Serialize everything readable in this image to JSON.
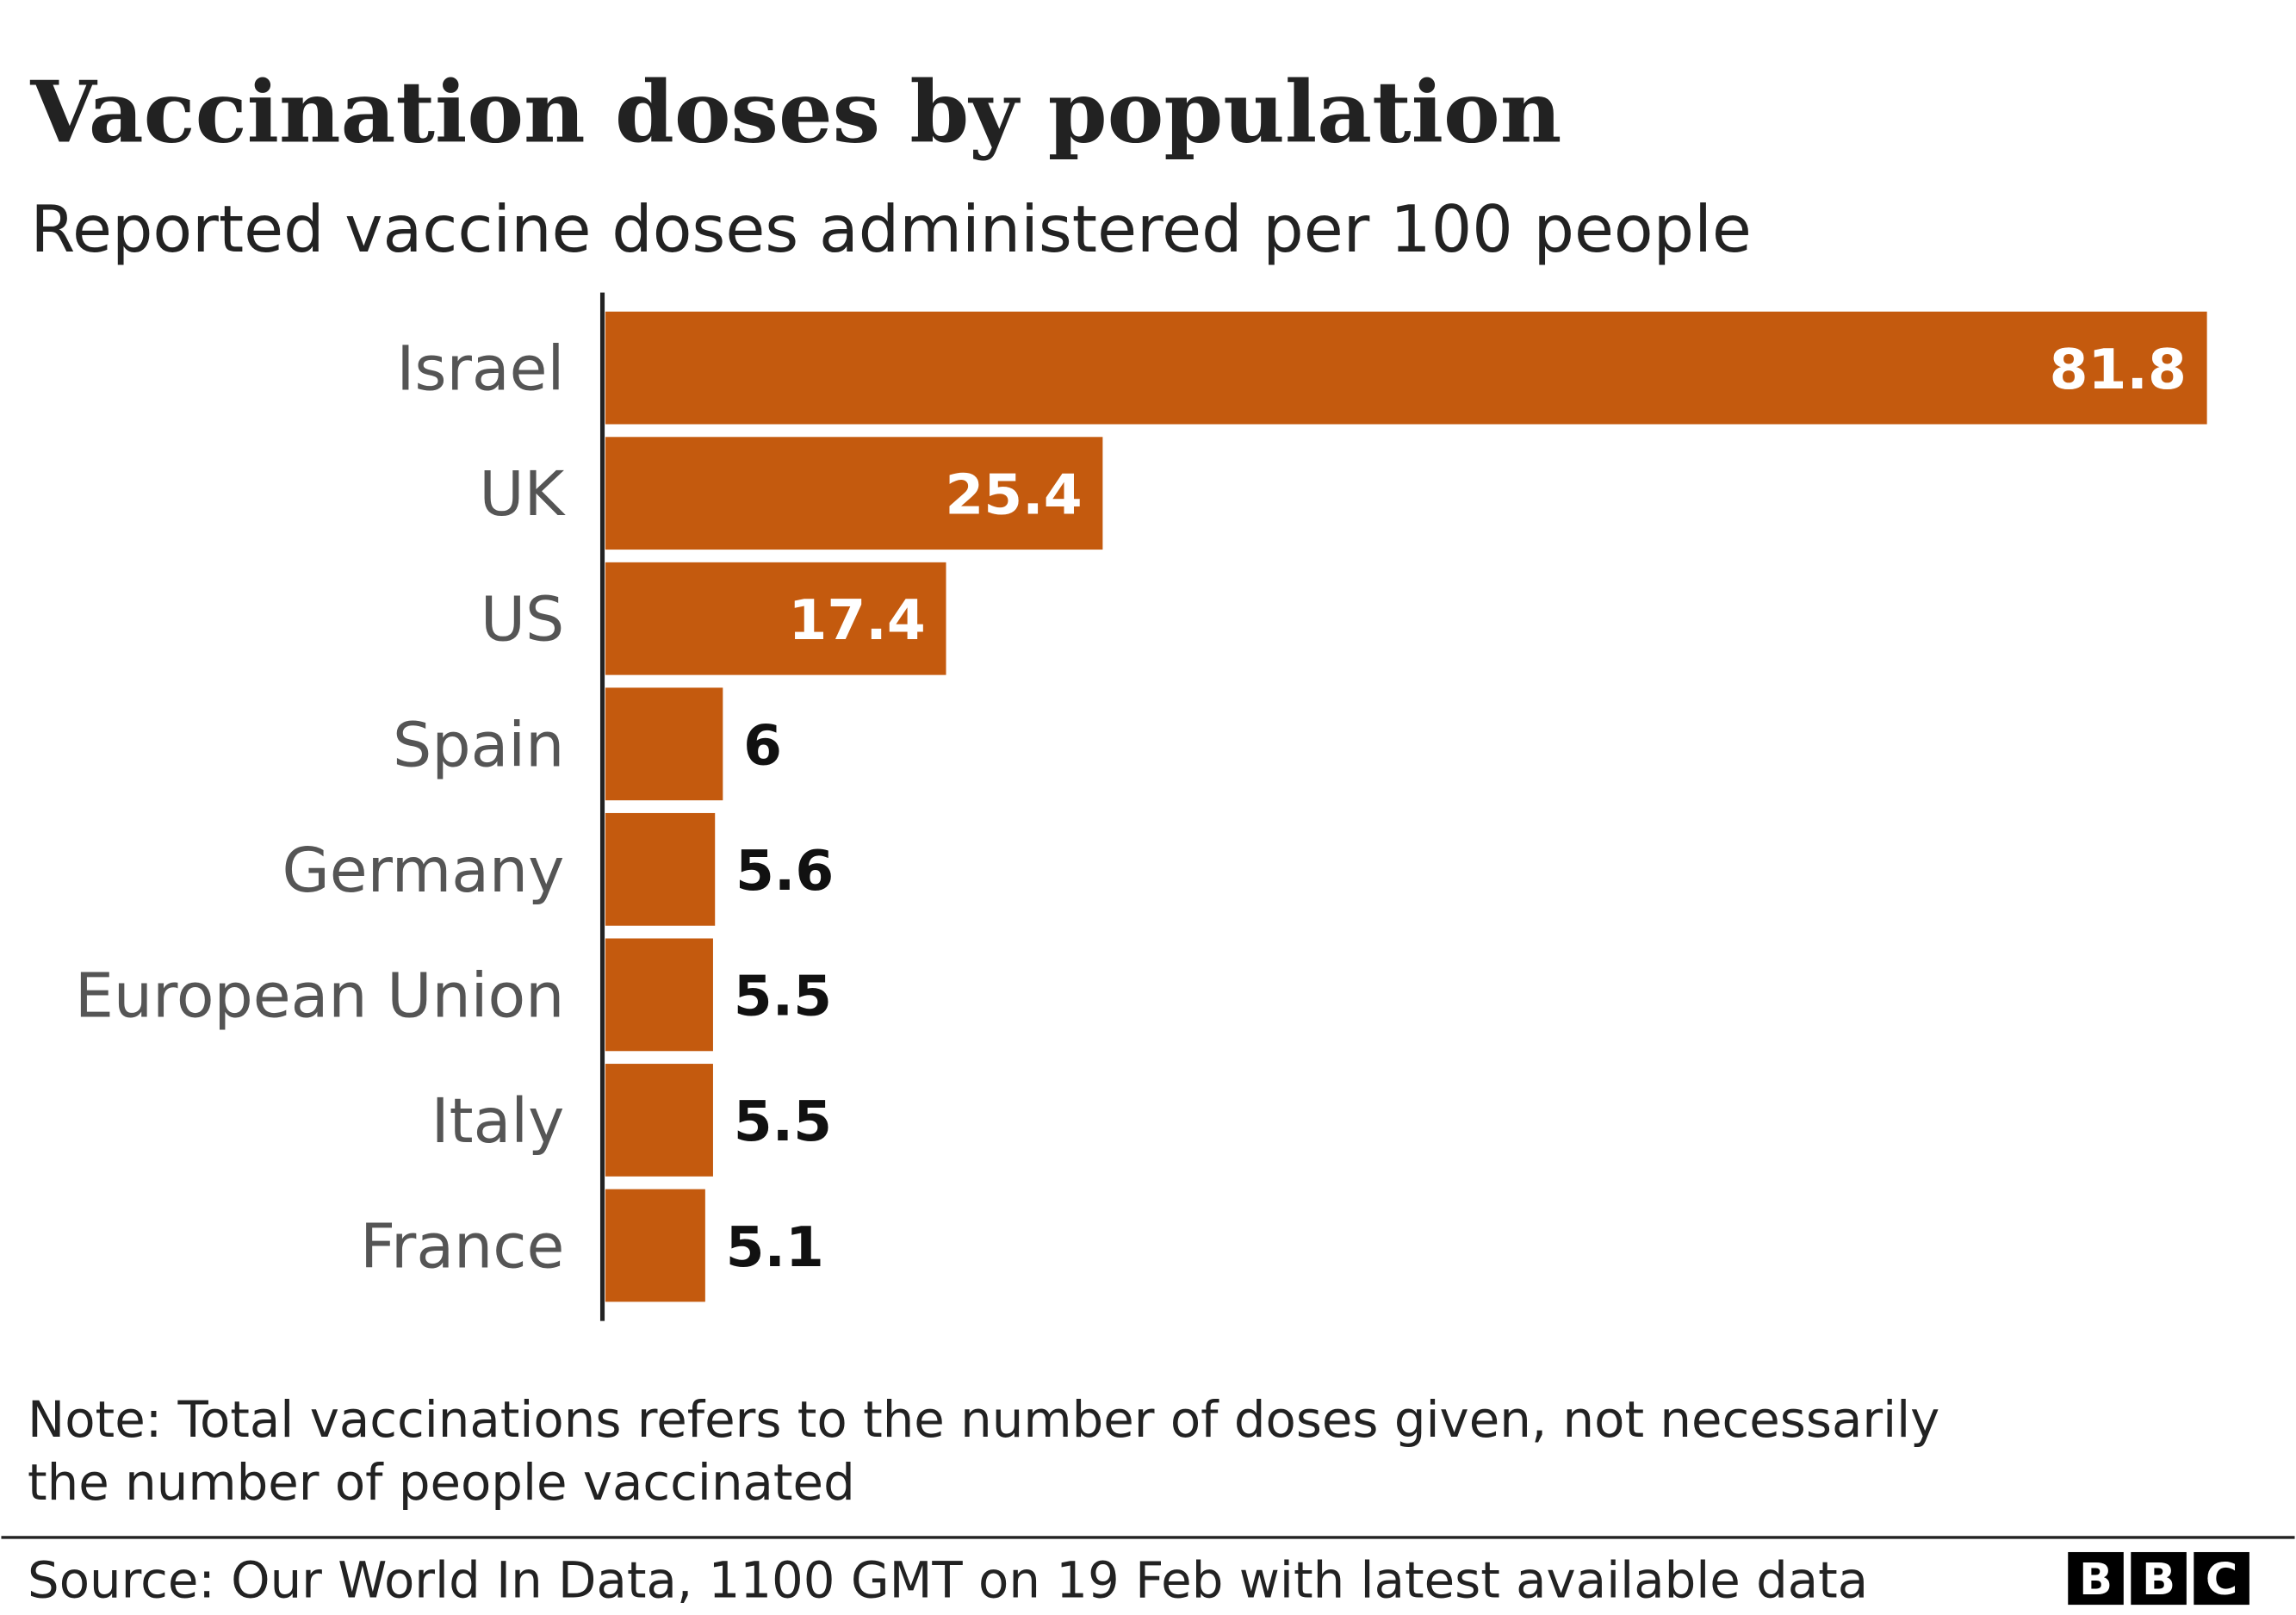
{
  "chart_data": {
    "type": "bar",
    "orientation": "horizontal",
    "title": "Vaccination doses by population",
    "subtitle": "Reported vaccine doses administered per 100 people",
    "categories": [
      "Israel",
      "UK",
      "US",
      "Spain",
      "Germany",
      "European Union",
      "Italy",
      "France"
    ],
    "values": [
      81.8,
      25.4,
      17.4,
      6,
      5.6,
      5.5,
      5.5,
      5.1
    ],
    "color": "#c45a0e",
    "note": [
      "Note: Total vaccinations refers to the number of doses given, not necessarily",
      "the number of people vaccinated"
    ],
    "source": "Source: Our World In Data, 1100 GMT on 19 Feb with latest available data",
    "logo": [
      "B",
      "B",
      "C"
    ]
  }
}
